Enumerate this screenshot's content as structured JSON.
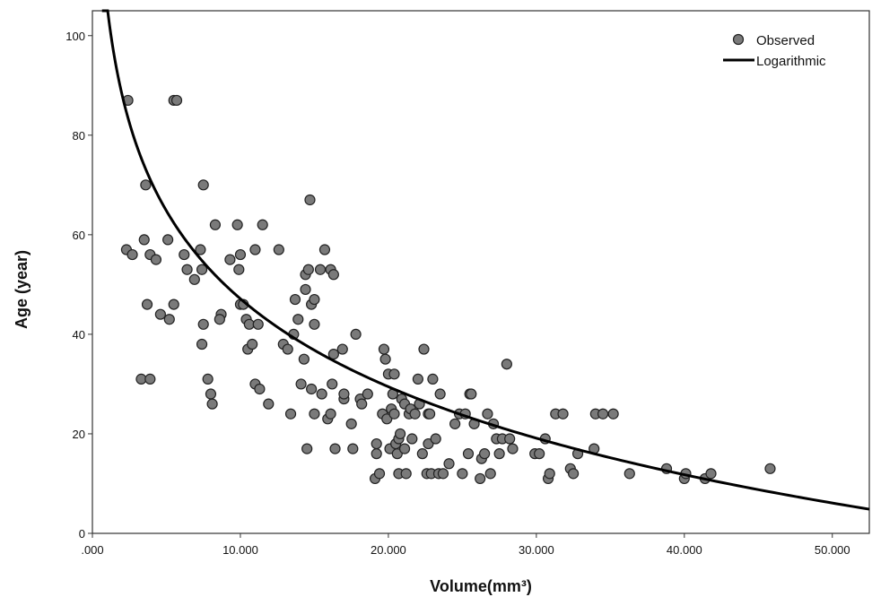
{
  "chart_data": {
    "type": "scatter",
    "xlabel": "Volume(mm³)",
    "ylabel": "Age (year)",
    "xlim": [
      0,
      52500
    ],
    "ylim": [
      0,
      105
    ],
    "x_ticks": [
      0,
      10000,
      20000,
      30000,
      40000,
      50000
    ],
    "x_tick_labels": [
      ".000",
      "10.000",
      "20.000",
      "30.000",
      "40.000",
      "50.000"
    ],
    "y_ticks": [
      0,
      20,
      40,
      60,
      80,
      100
    ],
    "y_tick_labels": [
      "0",
      "20",
      "40",
      "60",
      "80",
      "100"
    ],
    "grid": false,
    "legend_position": "top-right",
    "series": [
      {
        "name": "Observed",
        "kind": "scatter",
        "color": "#7a7a7a",
        "points": [
          [
            2400,
            87
          ],
          [
            5500,
            87
          ],
          [
            5700,
            87
          ],
          [
            3600,
            70
          ],
          [
            7500,
            70
          ],
          [
            14700,
            67
          ],
          [
            2300,
            57
          ],
          [
            2700,
            56
          ],
          [
            3500,
            59
          ],
          [
            3900,
            56
          ],
          [
            4300,
            55
          ],
          [
            5100,
            59
          ],
          [
            6200,
            56
          ],
          [
            6400,
            53
          ],
          [
            6900,
            51
          ],
          [
            7300,
            57
          ],
          [
            7400,
            53
          ],
          [
            8300,
            62
          ],
          [
            9300,
            55
          ],
          [
            9800,
            62
          ],
          [
            10000,
            56
          ],
          [
            9900,
            53
          ],
          [
            11000,
            57
          ],
          [
            11500,
            62
          ],
          [
            12600,
            57
          ],
          [
            14400,
            52
          ],
          [
            14600,
            53
          ],
          [
            15400,
            53
          ],
          [
            15700,
            57
          ],
          [
            16100,
            53
          ],
          [
            16300,
            52
          ],
          [
            3700,
            46
          ],
          [
            4600,
            44
          ],
          [
            5200,
            43
          ],
          [
            5500,
            46
          ],
          [
            8700,
            44
          ],
          [
            8600,
            43
          ],
          [
            10000,
            46
          ],
          [
            10200,
            46
          ],
          [
            10400,
            43
          ],
          [
            10600,
            42
          ],
          [
            11200,
            42
          ],
          [
            14400,
            49
          ],
          [
            14800,
            46
          ],
          [
            15000,
            47
          ],
          [
            15000,
            42
          ],
          [
            13700,
            47
          ],
          [
            13900,
            43
          ],
          [
            3300,
            31
          ],
          [
            3900,
            31
          ],
          [
            7400,
            38
          ],
          [
            7500,
            42
          ],
          [
            7800,
            31
          ],
          [
            8000,
            28
          ],
          [
            8100,
            26
          ],
          [
            10500,
            37
          ],
          [
            10800,
            38
          ],
          [
            11000,
            30
          ],
          [
            11300,
            29
          ],
          [
            11900,
            26
          ],
          [
            12900,
            38
          ],
          [
            13200,
            37
          ],
          [
            13400,
            24
          ],
          [
            13600,
            40
          ],
          [
            14100,
            30
          ],
          [
            14300,
            35
          ],
          [
            14500,
            17
          ],
          [
            14800,
            29
          ],
          [
            15000,
            24
          ],
          [
            15500,
            28
          ],
          [
            15900,
            23
          ],
          [
            16100,
            24
          ],
          [
            16200,
            30
          ],
          [
            16300,
            36
          ],
          [
            16400,
            17
          ],
          [
            16900,
            37
          ],
          [
            17000,
            27
          ],
          [
            17000,
            28
          ],
          [
            17500,
            22
          ],
          [
            17600,
            17
          ],
          [
            17800,
            40
          ],
          [
            18100,
            27
          ],
          [
            18200,
            26
          ],
          [
            18600,
            28
          ],
          [
            19100,
            11
          ],
          [
            19200,
            18
          ],
          [
            19200,
            16
          ],
          [
            19400,
            12
          ],
          [
            19600,
            24
          ],
          [
            19700,
            37
          ],
          [
            19800,
            35
          ],
          [
            20000,
            32
          ],
          [
            19900,
            23
          ],
          [
            20100,
            17
          ],
          [
            20200,
            25
          ],
          [
            20300,
            28
          ],
          [
            20400,
            32
          ],
          [
            20400,
            24
          ],
          [
            20500,
            18
          ],
          [
            20600,
            16
          ],
          [
            20700,
            12
          ],
          [
            20700,
            19
          ],
          [
            20800,
            20
          ],
          [
            20900,
            27
          ],
          [
            21100,
            26
          ],
          [
            21100,
            17
          ],
          [
            21200,
            12
          ],
          [
            21400,
            24
          ],
          [
            21500,
            25
          ],
          [
            21600,
            19
          ],
          [
            21800,
            24
          ],
          [
            22000,
            31
          ],
          [
            22100,
            26
          ],
          [
            22300,
            16
          ],
          [
            22400,
            37
          ],
          [
            22600,
            12
          ],
          [
            22700,
            18
          ],
          [
            22700,
            24
          ],
          [
            22800,
            24
          ],
          [
            22900,
            12
          ],
          [
            23000,
            31
          ],
          [
            23200,
            19
          ],
          [
            23400,
            12
          ],
          [
            23500,
            28
          ],
          [
            23700,
            12
          ],
          [
            24100,
            14
          ],
          [
            24500,
            22
          ],
          [
            24800,
            24
          ],
          [
            25000,
            12
          ],
          [
            25200,
            24
          ],
          [
            25400,
            16
          ],
          [
            25500,
            28
          ],
          [
            25600,
            28
          ],
          [
            25800,
            22
          ],
          [
            26200,
            11
          ],
          [
            26300,
            15
          ],
          [
            26500,
            16
          ],
          [
            26700,
            24
          ],
          [
            26900,
            12
          ],
          [
            27100,
            22
          ],
          [
            27300,
            19
          ],
          [
            27500,
            16
          ],
          [
            27700,
            19
          ],
          [
            28000,
            34
          ],
          [
            28200,
            19
          ],
          [
            28400,
            17
          ],
          [
            29900,
            16
          ],
          [
            30200,
            16
          ],
          [
            30600,
            19
          ],
          [
            30800,
            11
          ],
          [
            30900,
            12
          ],
          [
            31300,
            24
          ],
          [
            31800,
            24
          ],
          [
            32300,
            13
          ],
          [
            32500,
            12
          ],
          [
            32800,
            16
          ],
          [
            33900,
            17
          ],
          [
            34000,
            24
          ],
          [
            34500,
            24
          ],
          [
            35200,
            24
          ],
          [
            36300,
            12
          ],
          [
            38800,
            13
          ],
          [
            40000,
            11
          ],
          [
            40100,
            12
          ],
          [
            41400,
            11
          ],
          [
            41800,
            12
          ],
          [
            45800,
            13
          ]
        ]
      },
      {
        "name": "Logarithmic",
        "kind": "line",
        "color": "#000000",
        "model": "y = a + b*ln(x)",
        "a": 282,
        "b": -25.5,
        "x_range": [
          650,
          52500
        ]
      }
    ]
  }
}
